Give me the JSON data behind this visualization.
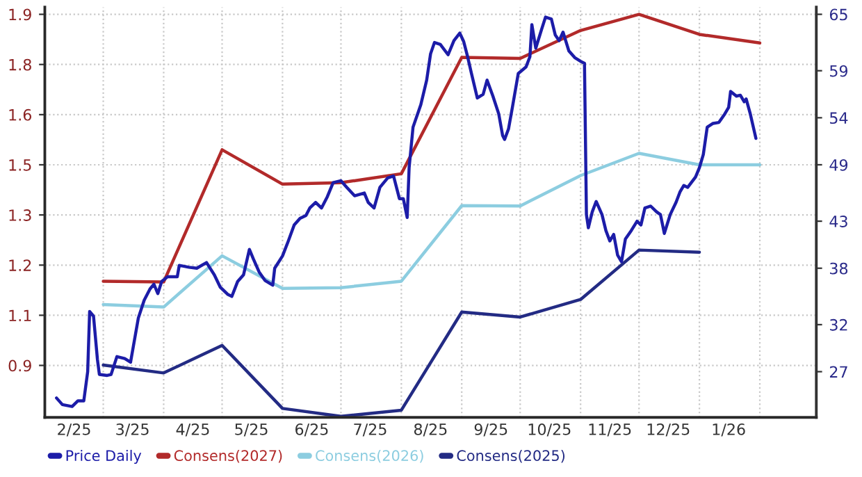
{
  "chart_data": {
    "type": "line",
    "legend": "bottom left",
    "grid": true,
    "xlim": [
      "2025-01-30",
      "2026-03-02"
    ],
    "ylim": [
      0.775,
      1.92
    ],
    "y2lim": [
      22.14,
      65.76
    ],
    "yticks": [
      {
        "value": 0.92,
        "label": "0.9"
      },
      {
        "value": 1.06,
        "label": "1.1"
      },
      1.2,
      {
        "value": 1.34,
        "label": "1.3"
      },
      {
        "value": 1.48,
        "label": "1.5"
      },
      {
        "value": 1.62,
        "label": "1.6"
      },
      {
        "value": 1.76,
        "label": "1.8"
      },
      1.9
    ],
    "y2ticks": [
      27,
      32,
      38,
      43,
      49,
      54,
      59,
      65
    ],
    "xticks": [
      {
        "value": "2025-02-14",
        "label": "2/25"
      },
      {
        "value": "2025-03-01",
        "label": null
      },
      {
        "value": "2025-03-16",
        "label": "3/25"
      },
      {
        "value": "2025-04-01",
        "label": null
      },
      {
        "value": "2025-04-16",
        "label": "4/25"
      },
      {
        "value": "2025-05-01",
        "label": null
      },
      {
        "value": "2025-05-16",
        "label": "5/25"
      },
      {
        "value": "2025-06-01",
        "label": null
      },
      {
        "value": "2025-06-16",
        "label": "6/25"
      },
      {
        "value": "2025-07-01",
        "label": null
      },
      {
        "value": "2025-07-16",
        "label": "7/25"
      },
      {
        "value": "2025-08-01",
        "label": null
      },
      {
        "value": "2025-08-16",
        "label": "8/25"
      },
      {
        "value": "2025-09-01",
        "label": null
      },
      {
        "value": "2025-09-16",
        "label": "9/25"
      },
      {
        "value": "2025-10-01",
        "label": null
      },
      {
        "value": "2025-10-16",
        "label": "10/25"
      },
      {
        "value": "2025-11-01",
        "label": null
      },
      {
        "value": "2025-11-16",
        "label": "11/25"
      },
      {
        "value": "2025-12-01",
        "label": null
      },
      {
        "value": "2025-12-16",
        "label": "12/25"
      },
      {
        "value": "2026-01-01",
        "label": null
      },
      {
        "value": "2026-01-16",
        "label": "1/26"
      },
      {
        "value": "2026-02-01",
        "label": null
      }
    ],
    "series": [
      {
        "name": "Price Daily",
        "color": "#1c1ca8",
        "axis": "y2",
        "x": [
          "2025-02-05",
          "2025-02-08",
          "2025-02-13",
          "2025-02-16",
          "2025-02-19",
          "2025-02-21",
          "2025-02-22",
          "2025-02-24",
          "2025-02-26",
          "2025-02-27",
          "2025-03-03",
          "2025-03-05",
          "2025-03-08",
          "2025-03-12",
          "2025-03-15",
          "2025-03-19",
          "2025-03-22",
          "2025-03-25",
          "2025-03-27",
          "2025-03-29",
          "2025-03-31",
          "2025-04-03",
          "2025-04-08",
          "2025-04-09",
          "2025-04-14",
          "2025-04-18",
          "2025-04-23",
          "2025-04-27",
          "2025-04-30",
          "2025-05-04",
          "2025-05-06",
          "2025-05-09",
          "2025-05-12",
          "2025-05-15",
          "2025-05-17",
          "2025-05-20",
          "2025-05-23",
          "2025-05-27",
          "2025-05-28",
          "2025-06-01",
          "2025-06-04",
          "2025-06-07",
          "2025-06-10",
          "2025-06-13",
          "2025-06-15",
          "2025-06-18",
          "2025-06-21",
          "2025-06-24",
          "2025-06-27",
          "2025-07-01",
          "2025-07-04",
          "2025-07-08",
          "2025-07-13",
          "2025-07-15",
          "2025-07-18",
          "2025-07-21",
          "2025-07-25",
          "2025-07-28",
          "2025-07-31",
          "2025-08-02",
          "2025-08-04",
          "2025-08-05",
          "2025-08-07",
          "2025-08-11",
          "2025-08-14",
          "2025-08-16",
          "2025-08-18",
          "2025-08-21",
          "2025-08-25",
          "2025-08-28",
          "2025-08-31",
          "2025-09-02",
          "2025-09-04",
          "2025-09-06",
          "2025-09-09",
          "2025-09-12",
          "2025-09-14",
          "2025-09-17",
          "2025-09-20",
          "2025-09-22",
          "2025-09-23",
          "2025-09-25",
          "2025-09-27",
          "2025-09-30",
          "2025-10-04",
          "2025-10-06",
          "2025-10-07",
          "2025-10-09",
          "2025-10-12",
          "2025-10-14",
          "2025-10-17",
          "2025-10-19",
          "2025-10-21",
          "2025-10-23",
          "2025-10-26",
          "2025-10-29",
          "2025-11-01",
          "2025-11-03",
          "2025-11-04",
          "2025-11-05",
          "2025-11-07",
          "2025-11-09",
          "2025-11-12",
          "2025-11-14",
          "2025-11-16",
          "2025-11-18",
          "2025-11-20",
          "2025-11-22",
          "2025-11-24",
          "2025-11-27",
          "2025-11-30",
          "2025-12-02",
          "2025-12-04",
          "2025-12-07",
          "2025-12-10",
          "2025-12-12",
          "2025-12-14",
          "2025-12-17",
          "2025-12-20",
          "2025-12-22",
          "2025-12-24",
          "2025-12-26",
          "2025-12-30",
          "2026-01-01",
          "2026-01-03",
          "2026-01-05",
          "2026-01-08",
          "2026-01-11",
          "2026-01-14",
          "2026-01-16",
          "2026-01-17",
          "2026-01-20",
          "2026-01-22",
          "2026-01-24",
          "2026-01-25",
          "2026-01-27",
          "2026-01-30"
        ],
        "values": [
          24.2,
          23.5,
          23.3,
          23.9,
          23.9,
          27.0,
          33.4,
          32.9,
          28.3,
          26.7,
          26.6,
          26.7,
          28.6,
          28.4,
          28.0,
          32.7,
          34.6,
          35.8,
          36.3,
          35.3,
          36.6,
          37.1,
          37.1,
          38.3,
          38.1,
          38.0,
          38.6,
          37.3,
          36.0,
          35.2,
          35.0,
          36.6,
          37.3,
          40.0,
          39.0,
          37.6,
          36.7,
          36.2,
          38.0,
          39.3,
          40.9,
          42.6,
          43.3,
          43.6,
          44.4,
          45.0,
          44.4,
          45.6,
          47.1,
          47.3,
          46.6,
          45.7,
          46.0,
          45.0,
          44.4,
          46.6,
          47.6,
          47.8,
          45.4,
          45.4,
          43.4,
          48.7,
          53.0,
          55.4,
          58.0,
          60.8,
          62.0,
          61.8,
          60.7,
          62.2,
          63.0,
          62.1,
          60.5,
          58.7,
          56.1,
          56.5,
          58.0,
          56.3,
          54.4,
          52.1,
          51.7,
          52.8,
          55.1,
          58.7,
          59.4,
          60.5,
          63.9,
          61.4,
          63.4,
          64.7,
          64.5,
          62.8,
          62.2,
          63.1,
          61.1,
          60.4,
          60.0,
          59.8,
          43.7,
          42.3,
          44.0,
          45.1,
          43.7,
          42.0,
          40.9,
          41.6,
          39.4,
          38.7,
          41.1,
          42.0,
          43.0,
          42.6,
          44.4,
          44.6,
          44.0,
          43.7,
          41.7,
          43.7,
          45.0,
          46.1,
          46.8,
          46.6,
          47.7,
          48.7,
          50.1,
          53.0,
          53.4,
          53.5,
          54.4,
          55.1,
          56.8,
          56.3,
          56.4,
          55.7,
          56.0,
          54.5,
          51.8
        ]
      },
      {
        "name": "Consens(2027)",
        "color": "#b22a2a",
        "x": [
          "2025-03-01",
          "2025-04-01",
          "2025-05-01",
          "2025-06-01",
          "2025-07-01",
          "2025-08-01",
          "2025-09-01",
          "2025-10-01",
          "2025-11-01",
          "2025-12-01",
          "2026-01-01",
          "2026-02-01"
        ],
        "values": [
          1.155,
          1.153,
          1.522,
          1.426,
          1.43,
          1.455,
          1.78,
          1.777,
          1.855,
          1.9,
          1.844,
          1.82
        ]
      },
      {
        "name": "Consens(2026)",
        "color": "#8ccde0",
        "x": [
          "2025-03-01",
          "2025-04-01",
          "2025-05-01",
          "2025-06-01",
          "2025-07-01",
          "2025-08-01",
          "2025-09-01",
          "2025-10-01",
          "2025-11-01",
          "2025-12-01",
          "2026-01-01",
          "2026-02-01"
        ],
        "values": [
          1.09,
          1.083,
          1.226,
          1.135,
          1.137,
          1.155,
          1.366,
          1.365,
          1.45,
          1.512,
          1.48,
          1.48
        ]
      },
      {
        "name": "Consens(2025)",
        "color": "#232b84",
        "x": [
          "2025-03-01",
          "2025-04-01",
          "2025-05-01",
          "2025-06-01",
          "2025-07-01",
          "2025-08-01",
          "2025-09-01",
          "2025-10-01",
          "2025-11-01",
          "2025-12-01",
          "2026-01-01"
        ],
        "values": [
          0.921,
          0.899,
          0.976,
          0.8,
          0.778,
          0.795,
          1.069,
          1.055,
          1.104,
          1.242,
          1.236
        ]
      }
    ]
  }
}
